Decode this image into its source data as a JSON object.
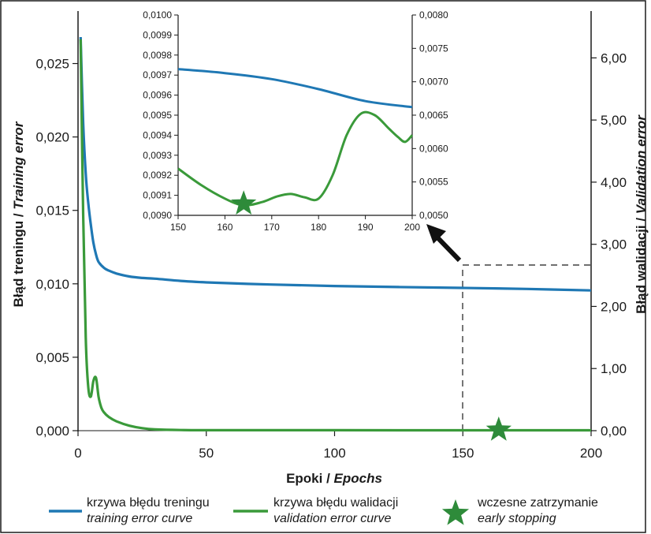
{
  "colors": {
    "training": "#1f78b4",
    "validation": "#3a9a3a",
    "star": "#2e8b3a",
    "axis": "#1a1a1a",
    "arrow": "#111111"
  },
  "axes": {
    "x_title_pl": "Epoki",
    "x_title_en": "Epochs",
    "x_title_sep": " / ",
    "y_left_title_pl": "Błąd treningu / ",
    "y_left_title_en": "Training error",
    "y_right_title_pl": "Błąd walidacji / ",
    "y_right_title_en": "Validation error"
  },
  "legend": {
    "training_pl": "krzywa błędu treningu",
    "training_en": "training error curve",
    "validation_pl": "krzywa błędu walidacji",
    "validation_en": "validation error curve",
    "stop_pl": "wczesne zatrzymanie",
    "stop_en": "early stopping"
  },
  "chart_data": [
    {
      "type": "line",
      "x_ticks": [
        "0",
        "50",
        "100",
        "150",
        "200"
      ],
      "y_left_ticks": [
        "0,000",
        "0,005",
        "0,010",
        "0,015",
        "0,020",
        "0,025"
      ],
      "y_right_ticks": [
        "0,00",
        "1,00",
        "2,00",
        "3,00",
        "4,00",
        "5,00",
        "6,00"
      ],
      "xlim": [
        0,
        200
      ],
      "ylim_left": [
        0,
        0.0275
      ],
      "ylim_right": [
        0,
        6.5
      ],
      "series": [
        {
          "name": "krzywa błędu treningu / training error curve",
          "axis": "left",
          "x": [
            1,
            2,
            3,
            4,
            5,
            6,
            7,
            8,
            10,
            12,
            15,
            20,
            25,
            30,
            40,
            50,
            75,
            100,
            125,
            150,
            175,
            200
          ],
          "y": [
            0.0268,
            0.021,
            0.0175,
            0.0155,
            0.014,
            0.0128,
            0.012,
            0.0115,
            0.0111,
            0.0109,
            0.0107,
            0.0105,
            0.0104,
            0.01035,
            0.0102,
            0.0101,
            0.00995,
            0.00985,
            0.00978,
            0.00972,
            0.00965,
            0.00955
          ]
        },
        {
          "name": "krzywa błędu walidacji / validation error curve",
          "axis": "right",
          "x": [
            1,
            2,
            3,
            4,
            5,
            6,
            7,
            8,
            9,
            10,
            12,
            15,
            20,
            25,
            30,
            40,
            50,
            100,
            150,
            200
          ],
          "y": [
            6.3,
            3.5,
            1.5,
            0.7,
            0.55,
            0.8,
            0.85,
            0.55,
            0.38,
            0.3,
            0.22,
            0.15,
            0.08,
            0.04,
            0.02,
            0.01,
            0.008,
            0.007,
            0.006,
            0.006
          ]
        }
      ],
      "markers": [
        {
          "name": "wczesne zatrzymanie / early stopping",
          "x": 164,
          "y": 0.0
        }
      ]
    },
    {
      "type": "line",
      "title": "",
      "x_ticks": [
        "150",
        "160",
        "170",
        "180",
        "190",
        "200"
      ],
      "y_left_ticks": [
        "0,0090",
        "0,0091",
        "0,0092",
        "0,0093",
        "0,0094",
        "0,0095",
        "0,0096",
        "0,0097",
        "0,0098",
        "0,0099",
        "0,0100"
      ],
      "y_right_ticks": [
        "0,0050",
        "0,0055",
        "0,0060",
        "0,0065",
        "0,0070",
        "0,0075",
        "0,0080"
      ],
      "xlim": [
        150,
        200
      ],
      "ylim_left": [
        0.009,
        0.01
      ],
      "ylim_right": [
        0.005,
        0.008
      ],
      "series": [
        {
          "name": "training",
          "axis": "left",
          "x": [
            150,
            160,
            170,
            180,
            190,
            200
          ],
          "y": [
            0.00973,
            0.00971,
            0.00968,
            0.00963,
            0.00957,
            0.00954
          ]
        },
        {
          "name": "validation",
          "axis": "right",
          "x": [
            150,
            155,
            160,
            164,
            168,
            171,
            174,
            177,
            180,
            183,
            186,
            189,
            192,
            195,
            197,
            198.5,
            200
          ],
          "y": [
            0.0057,
            0.00545,
            0.00525,
            0.00515,
            0.0052,
            0.00528,
            0.00532,
            0.00527,
            0.00525,
            0.0056,
            0.0062,
            0.00652,
            0.0065,
            0.0063,
            0.00617,
            0.0061,
            0.0062
          ]
        }
      ],
      "markers": [
        {
          "name": "early stopping",
          "x": 164,
          "y": 0.00515
        }
      ]
    }
  ]
}
